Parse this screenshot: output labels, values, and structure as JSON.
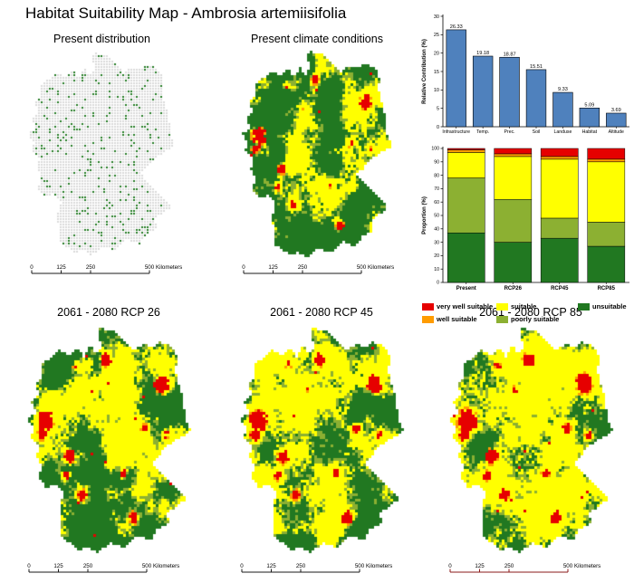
{
  "figure": {
    "title": "Habitat Suitability Map - Ambrosia artemiisifolia"
  },
  "panels": {
    "present_distribution": {
      "title": "Present distribution"
    },
    "present_climate": {
      "title": "Present climate conditions"
    },
    "rcp26": {
      "title": "2061 - 2080 RCP 26"
    },
    "rcp45": {
      "title": "2061 - 2080 RCP 45"
    },
    "rcp85": {
      "title": "2061 - 2080 RCP 85"
    }
  },
  "scalebar": {
    "tick_labels": [
      "0",
      "125",
      "250",
      "500"
    ],
    "unit": "Kilometers",
    "colors": {
      "default": "#1a1a1a",
      "rcp85": "#8b1a1a"
    }
  },
  "legend": {
    "items": [
      {
        "label": "very well suitable",
        "color": "#e60000"
      },
      {
        "label": "well suitable",
        "color": "#ff9c00"
      },
      {
        "label": "suitable",
        "color": "#ffff00"
      },
      {
        "label": "poorly suitable",
        "color": "#8cb032"
      },
      {
        "label": "unsuitable",
        "color": "#217821"
      }
    ]
  },
  "map_colors": {
    "distribution_base": "#d9d9d9",
    "bar_blue": "#4f81bd"
  },
  "chart_data": [
    {
      "type": "bar",
      "title": "",
      "xlabel": "",
      "ylabel": "Relative Contribution (%)",
      "ylim": [
        0,
        30
      ],
      "yticks": [
        0,
        5,
        10,
        15,
        20,
        25,
        30
      ],
      "grid": false,
      "categories": [
        "Infrastructure",
        "Temp.",
        "Prec.",
        "Soil",
        "Landuse",
        "Habitat",
        "Altitude"
      ],
      "values": [
        26.33,
        19.18,
        18.87,
        15.51,
        9.33,
        5.09,
        3.69
      ],
      "bar_color": "#4f81bd"
    },
    {
      "type": "bar",
      "stacked": true,
      "title": "",
      "xlabel": "",
      "ylabel": "Proportion (%)",
      "ylim": [
        0,
        100
      ],
      "yticks": [
        0,
        10,
        20,
        30,
        40,
        50,
        60,
        70,
        80,
        90,
        100
      ],
      "grid": false,
      "categories": [
        "Present",
        "RCP26",
        "RCP45",
        "RCP85"
      ],
      "series": [
        {
          "name": "unsuitable",
          "color": "#217821",
          "values": [
            37,
            30,
            33,
            27
          ]
        },
        {
          "name": "poorly suitable",
          "color": "#8cb032",
          "values": [
            41,
            32,
            15,
            18
          ]
        },
        {
          "name": "suitable",
          "color": "#ffff00",
          "values": [
            19,
            32,
            44,
            45
          ]
        },
        {
          "name": "well suitable",
          "color": "#ff9c00",
          "values": [
            2,
            2,
            2,
            2
          ]
        },
        {
          "name": "very well suitable",
          "color": "#e60000",
          "values": [
            1,
            4,
            6,
            8
          ]
        }
      ]
    }
  ]
}
